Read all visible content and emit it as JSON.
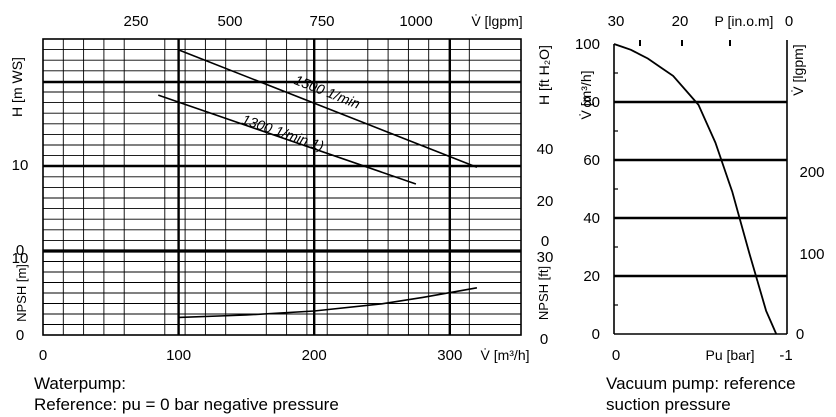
{
  "chart_data": [
    {
      "id": "waterpump",
      "type": "line",
      "xlabel": "V̇ [m³/h]",
      "xlim": [
        0,
        330
      ],
      "xticks": [
        "0",
        "100",
        "200",
        "300"
      ],
      "top_xlabel": "V̇ [lgpm]",
      "top_xticks": [
        "250",
        "500",
        "750",
        "1000"
      ],
      "head_panel": {
        "ylabel_left": "H [m WS]",
        "ylabel_right": "H [ft H₂O]",
        "yticks_left": [
          "0",
          "10"
        ],
        "yticks_right": [
          "0",
          "20",
          "40"
        ],
        "series": [
          {
            "name": "1500 1/min",
            "x": [
              100,
              320
            ],
            "y": [
              24,
              10
            ]
          },
          {
            "name": "1300 1/min 1)",
            "x": [
              85,
              275
            ],
            "y": [
              18.6,
              8
            ]
          }
        ]
      },
      "npsh_panel": {
        "ylabel_left": "NPSH [m]",
        "ylabel_right": "NPSH [ft]",
        "yticks_left": [
          "0",
          "10"
        ],
        "yticks_right": [
          "0",
          "30"
        ],
        "series": [
          {
            "name": "NPSH",
            "x": [
              100,
              150,
              200,
              250,
              280,
              320
            ],
            "y": [
              2.2,
              2.5,
              3.0,
              3.9,
              4.7,
              5.9
            ]
          }
        ]
      }
    },
    {
      "id": "vacuum",
      "type": "line",
      "xlabel": "Pu [bar]",
      "xticks": [
        "0",
        "-1"
      ],
      "xlim": [
        0,
        -1
      ],
      "top_xlabel": "P [in.o.m]",
      "top_xticks": [
        "30",
        "20",
        "0"
      ],
      "ylabel_left": "V̇ [m³/h]",
      "ylim": [
        0,
        100
      ],
      "yticks_left": [
        "0",
        "20",
        "40",
        "60",
        "80",
        "100"
      ],
      "ylabel_right": "V̇ [lgpm]",
      "yticks_right": [
        "0",
        "100",
        "200"
      ],
      "series": [
        {
          "name": "vacuum",
          "x": [
            0,
            -0.1,
            -0.2,
            -0.35,
            -0.5,
            -0.6,
            -0.7,
            -0.8,
            -0.85,
            -0.9,
            -0.96
          ],
          "y": [
            100,
            98,
            95,
            89,
            79,
            66,
            49,
            28,
            18,
            8,
            0
          ]
        }
      ]
    }
  ],
  "captions": {
    "water_line1": "Waterpump:",
    "water_line2": "Reference: pu = 0 bar negative pressure",
    "vacuum_line1": "Vacuum pump: reference",
    "vacuum_line2": "suction pressure"
  }
}
